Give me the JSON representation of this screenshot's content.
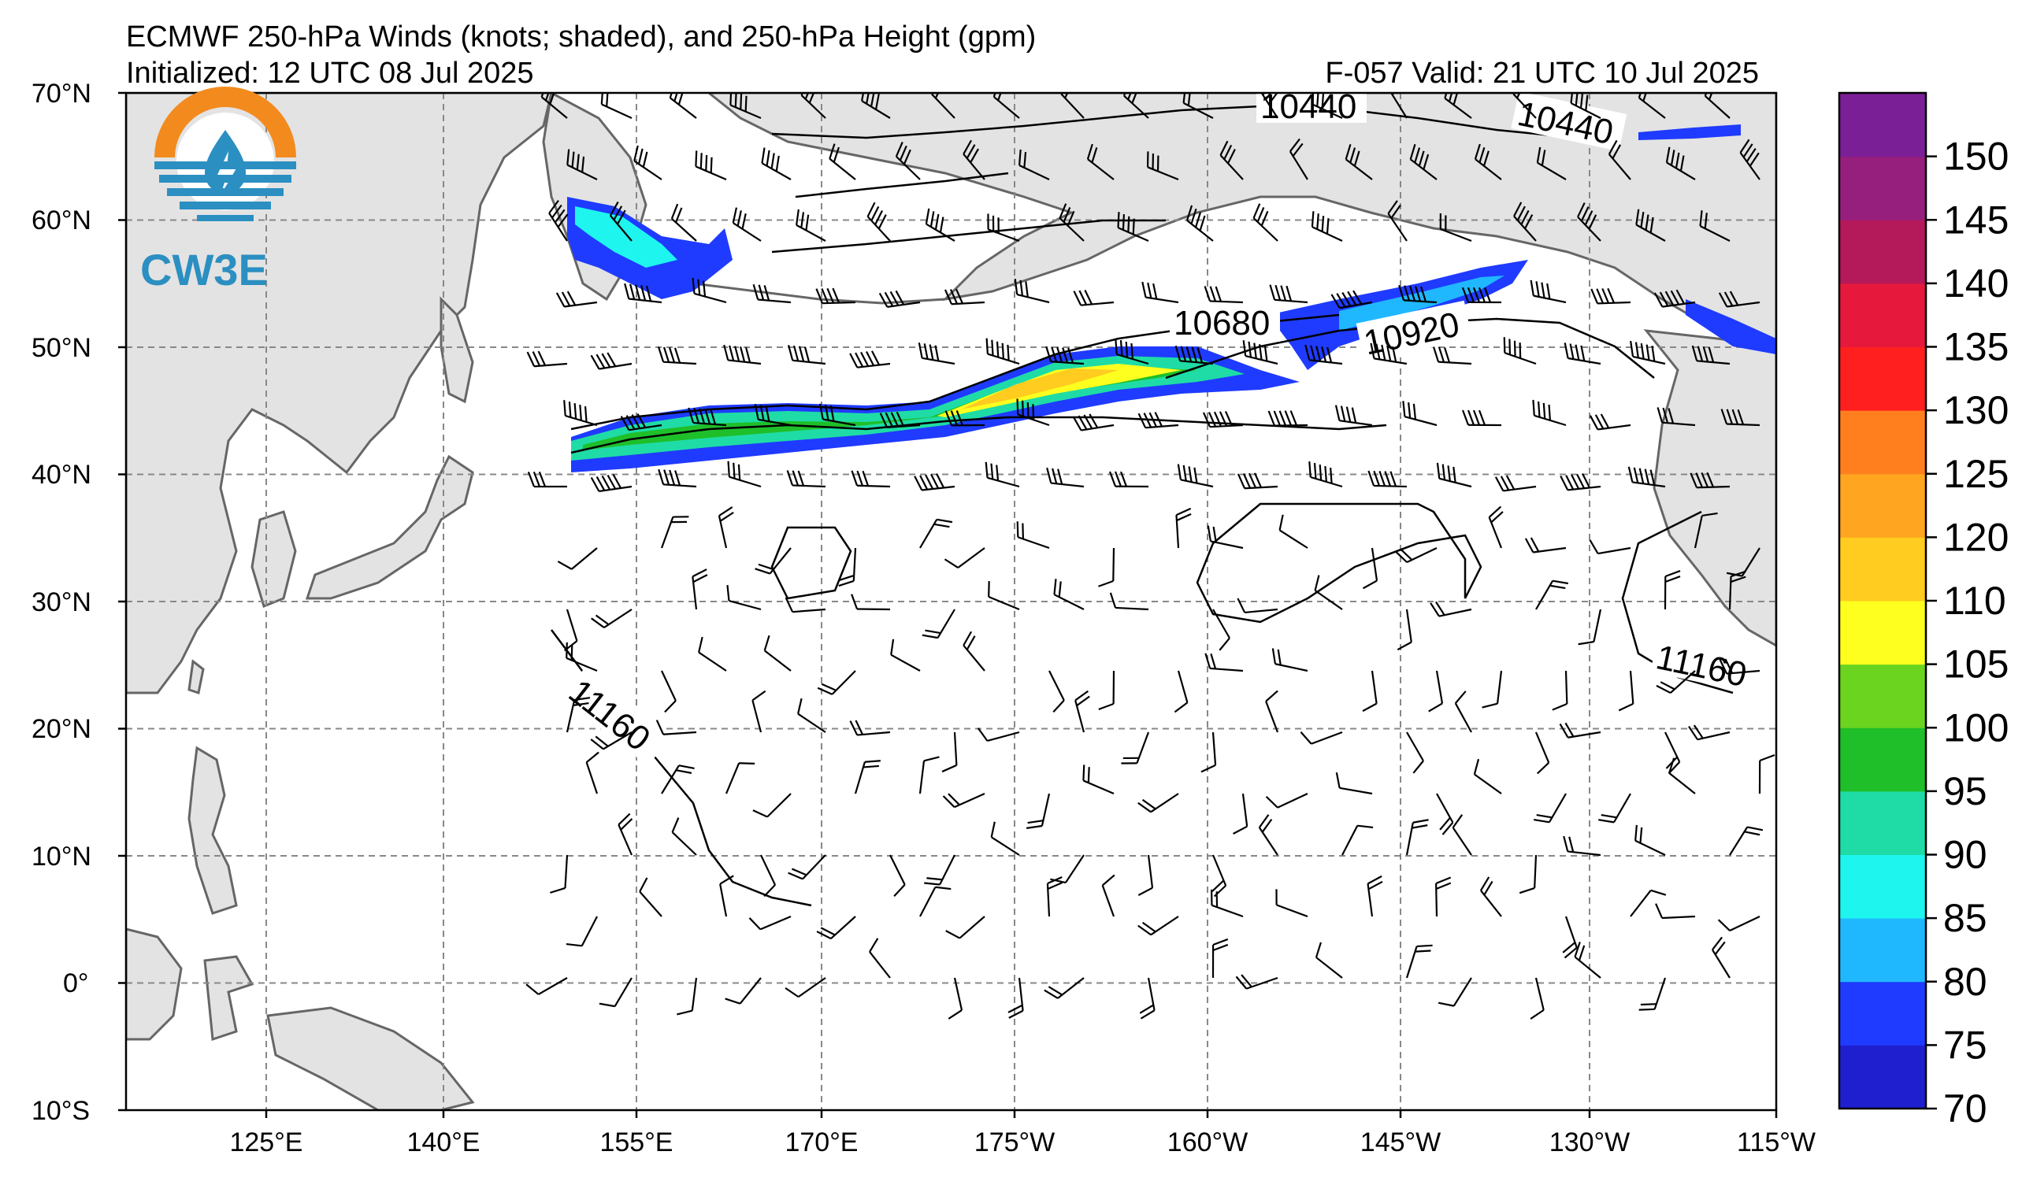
{
  "header": {
    "title": "ECMWF 250-hPa Winds (knots; shaded), and 250-hPa Height (gpm)",
    "initialized": "Initialized: 12 UTC 08 Jul 2025",
    "valid": "F-057  Valid: 21 UTC 10 Jul 2025"
  },
  "logo": {
    "text": "CW3E",
    "icon": "water-drop-lightning-icon"
  },
  "axes": {
    "lat_labels": [
      "70°N",
      "60°N",
      "50°N",
      "40°N",
      "30°N",
      "20°N",
      "10°N",
      "0°",
      "10°S"
    ],
    "lon_labels": [
      "125°E",
      "140°E",
      "155°E",
      "170°E",
      "175°W",
      "160°W",
      "145°W",
      "130°W",
      "115°W"
    ]
  },
  "map": {
    "projection": "equirectangular",
    "lon_range": [
      110,
      245
    ],
    "lat_range": [
      -10,
      70
    ],
    "gridlines": true
  },
  "contours": {
    "labels": [
      "10440",
      "10440",
      "10680",
      "10920",
      "11160",
      "11160"
    ]
  },
  "colorbar": {
    "ticks": [
      "70",
      "75",
      "80",
      "85",
      "90",
      "95",
      "100",
      "105",
      "110",
      "120",
      "125",
      "130",
      "135",
      "140",
      "145",
      "150"
    ],
    "colors": [
      "#1f1fd0",
      "#1f3bff",
      "#1fb8ff",
      "#1ff5ef",
      "#1fdca6",
      "#1fbf2a",
      "#6ad41f",
      "#ffff1f",
      "#ffcc1f",
      "#ffa51f",
      "#ff7f1f",
      "#ff1f1f",
      "#e6193c",
      "#b4195a",
      "#961e7d",
      "#7b1f96"
    ]
  }
}
